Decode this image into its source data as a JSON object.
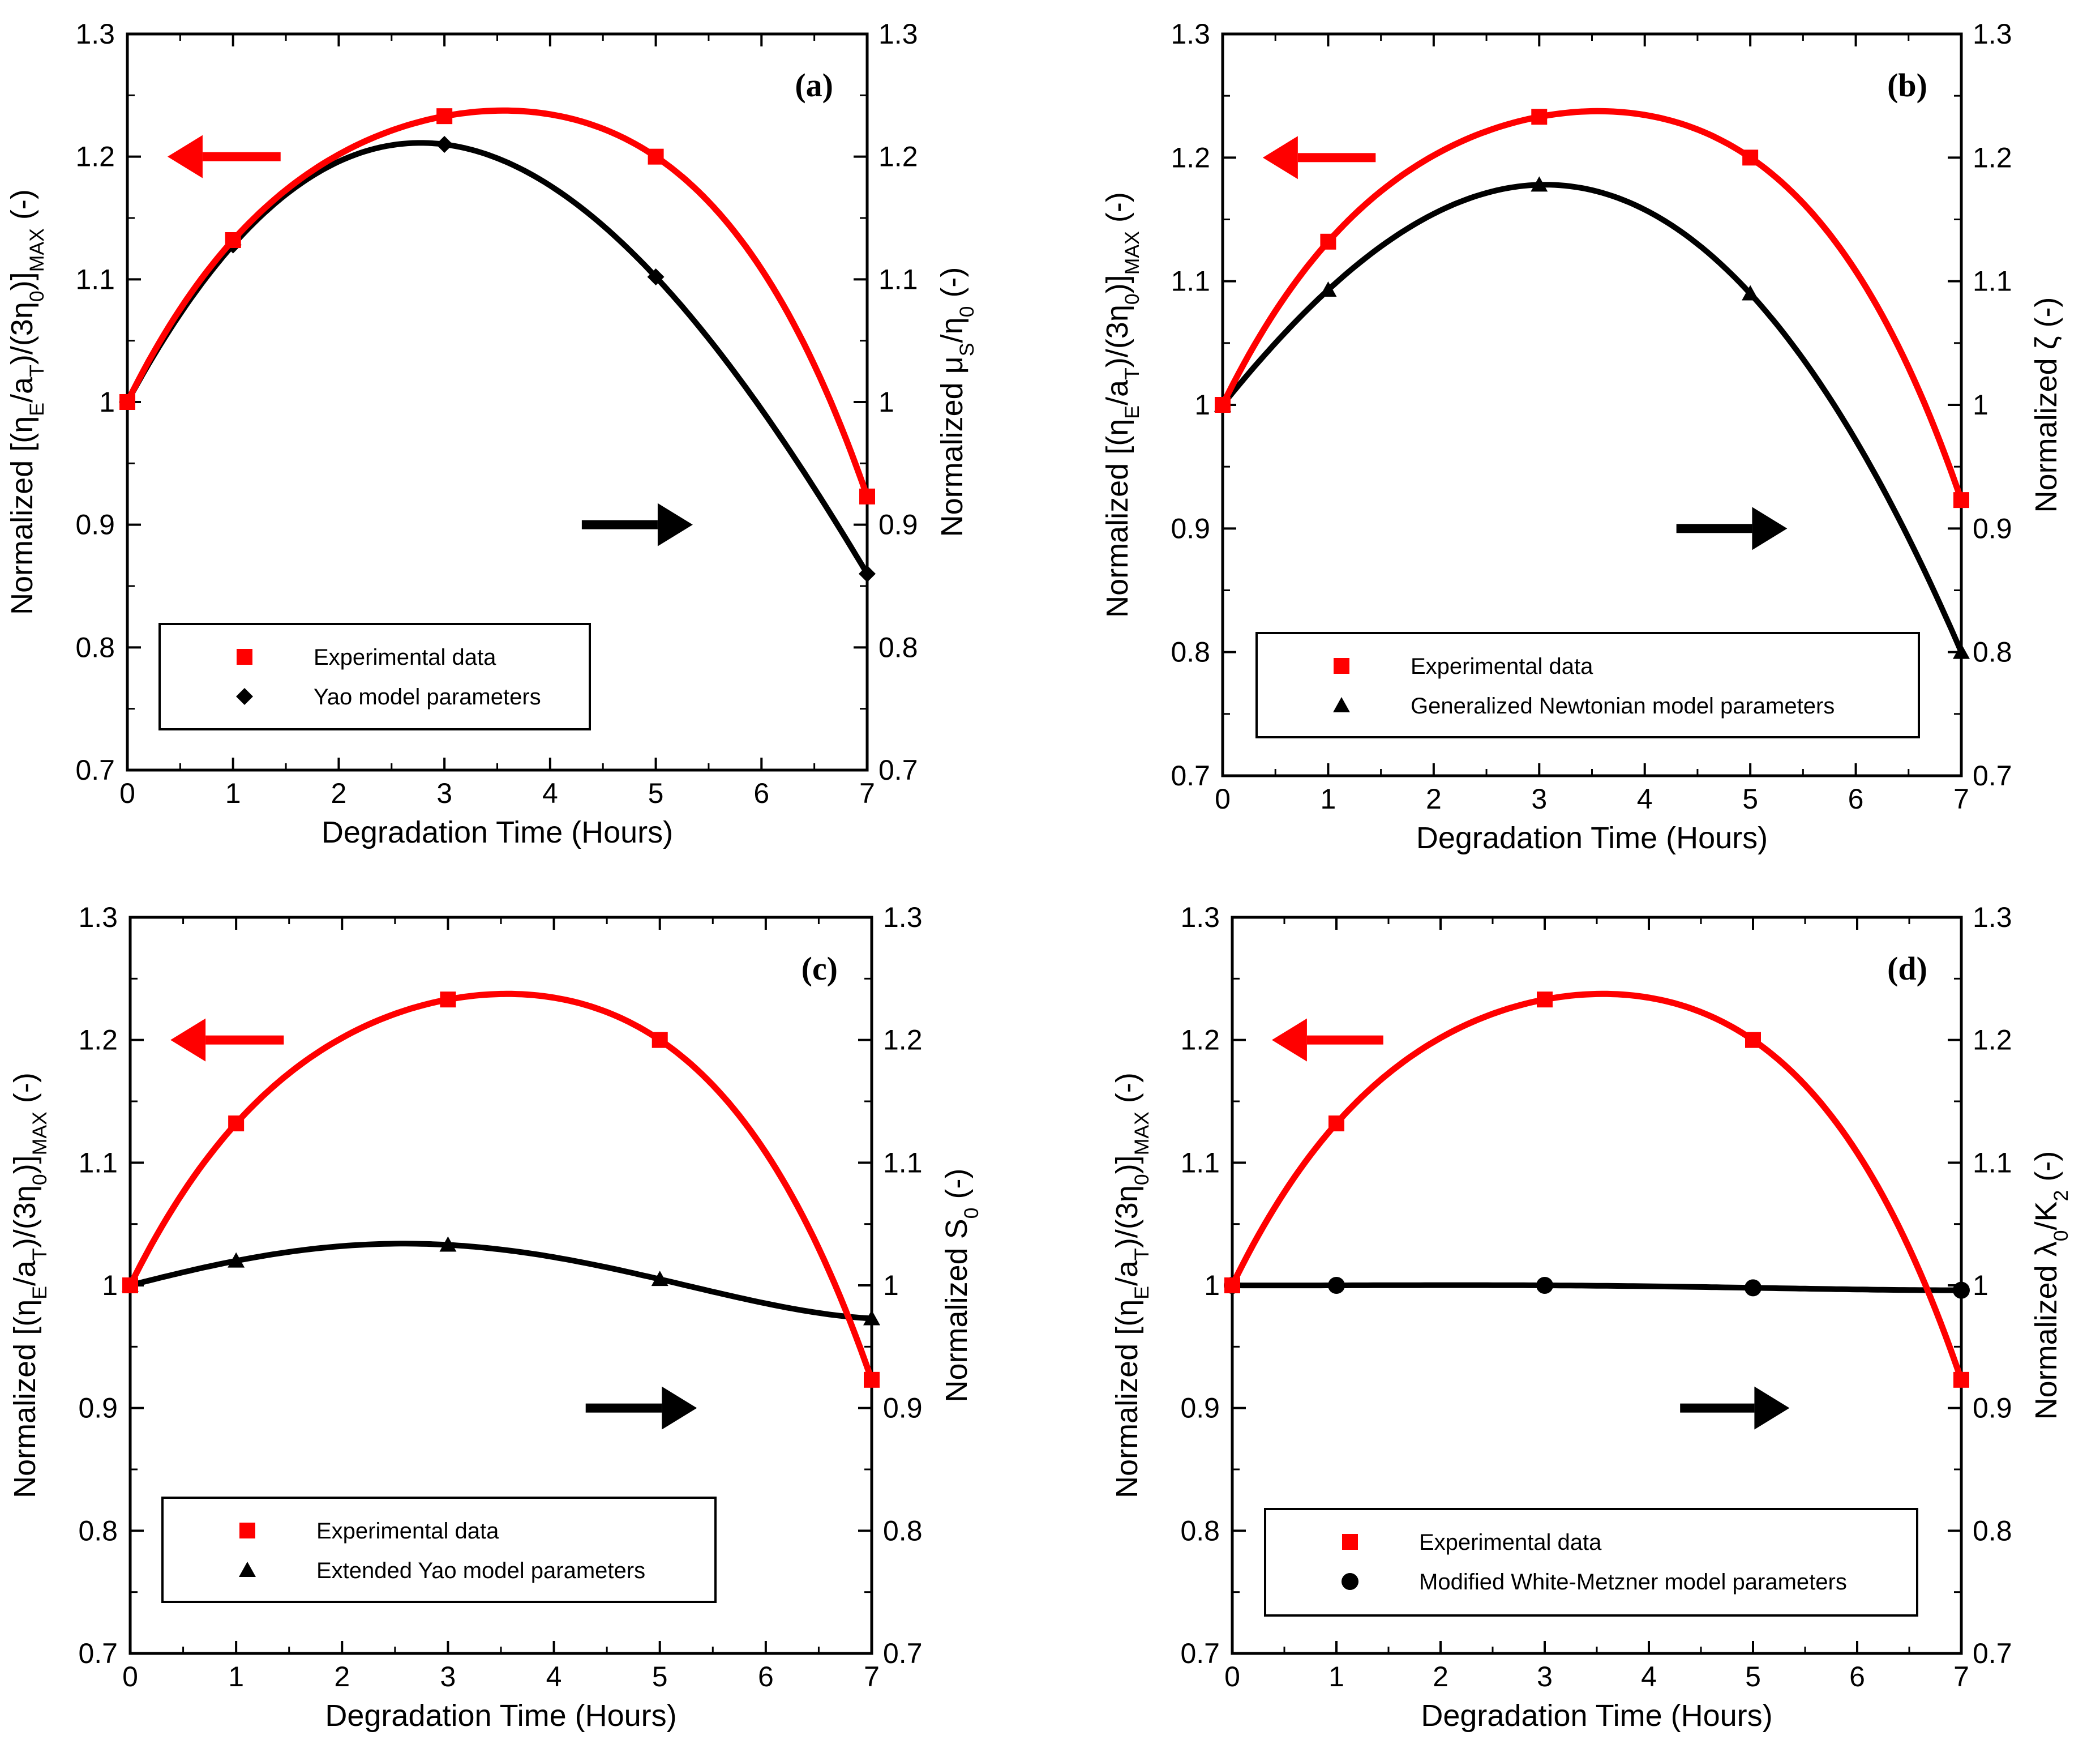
{
  "colors": {
    "experimental": "#ff0000",
    "model": "#000000",
    "axis": "#000000",
    "background": "#ffffff"
  },
  "chart_data": [
    {
      "type": "line",
      "panel_label": "(a)",
      "xlabel": "Degradation Time (Hours)",
      "ylabel_left": "Normalized [(η_E/a_T)/(3η_0)]_MAX (-)",
      "ylabel_right": "Normalized μ_S/η_0 (-)",
      "x_ticks": [
        "0",
        "1",
        "2",
        "3",
        "4",
        "5",
        "6",
        "7"
      ],
      "y_ticks": [
        "0.7",
        "0.8",
        "0.9",
        "1",
        "1.1",
        "1.2",
        "1.3"
      ],
      "xlim": [
        0,
        7
      ],
      "ylim": [
        0.7,
        1.3
      ],
      "legend_position": "bottom-left",
      "series": [
        {
          "name": "Experimental data",
          "marker": "square",
          "color": "#ff0000",
          "axis": "left",
          "x": [
            0,
            1,
            3,
            5,
            7
          ],
          "y": [
            1.0,
            1.132,
            1.233,
            1.2,
            0.923
          ]
        },
        {
          "name": "Yao model parameters",
          "marker": "diamond",
          "color": "#000000",
          "axis": "right",
          "x": [
            0,
            1,
            3,
            5,
            7
          ],
          "y": [
            1.0,
            1.128,
            1.21,
            1.102,
            0.86
          ]
        }
      ]
    },
    {
      "type": "line",
      "panel_label": "(b)",
      "xlabel": "Degradation Time (Hours)",
      "ylabel_left": "Normalized [(η_E/a_T)/(3η_0)]_MAX (-)",
      "ylabel_right": "Normalized ζ (-)",
      "x_ticks": [
        "0",
        "1",
        "2",
        "3",
        "4",
        "5",
        "6",
        "7"
      ],
      "y_ticks": [
        "0.7",
        "0.8",
        "0.9",
        "1",
        "1.1",
        "1.2",
        "1.3"
      ],
      "xlim": [
        0,
        7
      ],
      "ylim": [
        0.7,
        1.3
      ],
      "legend_position": "bottom-left",
      "series": [
        {
          "name": "Experimental data",
          "marker": "square",
          "color": "#ff0000",
          "axis": "left",
          "x": [
            0,
            1,
            3,
            5,
            7
          ],
          "y": [
            1.0,
            1.132,
            1.233,
            1.2,
            0.923
          ]
        },
        {
          "name": "Generalized Newtonian model parameters",
          "marker": "triangle",
          "color": "#000000",
          "axis": "right",
          "x": [
            0,
            1,
            3,
            5,
            7
          ],
          "y": [
            1.0,
            1.093,
            1.178,
            1.09,
            0.8
          ]
        }
      ]
    },
    {
      "type": "line",
      "panel_label": "(c)",
      "xlabel": "Degradation Time (Hours)",
      "ylabel_left": "Normalized [(η_E/a_T)/(3η_0)]_MAX (-)",
      "ylabel_right": "Normalized S_0 (-)",
      "x_ticks": [
        "0",
        "1",
        "2",
        "3",
        "4",
        "5",
        "6",
        "7"
      ],
      "y_ticks": [
        "0.7",
        "0.8",
        "0.9",
        "1",
        "1.1",
        "1.2",
        "1.3"
      ],
      "xlim": [
        0,
        7
      ],
      "ylim": [
        0.7,
        1.3
      ],
      "legend_position": "bottom-left",
      "series": [
        {
          "name": "Experimental data",
          "marker": "square",
          "color": "#ff0000",
          "axis": "left",
          "x": [
            0,
            1,
            3,
            5,
            7
          ],
          "y": [
            1.0,
            1.132,
            1.233,
            1.2,
            0.923
          ]
        },
        {
          "name": "Extended Yao model parameters",
          "marker": "triangle",
          "color": "#000000",
          "axis": "right",
          "x": [
            0,
            1,
            3,
            5,
            7
          ],
          "y": [
            1.0,
            1.02,
            1.033,
            1.005,
            0.973
          ]
        }
      ]
    },
    {
      "type": "line",
      "panel_label": "(d)",
      "xlabel": "Degradation Time (Hours)",
      "ylabel_left": "Normalized [(η_E/a_T)/(3η_0)]_MAX (-)",
      "ylabel_right": "Normalized λ_0/K_2 (-)",
      "x_ticks": [
        "0",
        "1",
        "2",
        "3",
        "4",
        "5",
        "6",
        "7"
      ],
      "y_ticks": [
        "0.7",
        "0.8",
        "0.9",
        "1",
        "1.1",
        "1.2",
        "1.3"
      ],
      "xlim": [
        0,
        7
      ],
      "ylim": [
        0.7,
        1.3
      ],
      "legend_position": "bottom-left",
      "series": [
        {
          "name": "Experimental data",
          "marker": "square",
          "color": "#ff0000",
          "axis": "left",
          "x": [
            0,
            1,
            3,
            5,
            7
          ],
          "y": [
            1.0,
            1.132,
            1.233,
            1.2,
            0.923
          ]
        },
        {
          "name": "Modified White-Metzner model parameters",
          "marker": "circle",
          "color": "#000000",
          "axis": "right",
          "x": [
            0,
            1,
            3,
            5,
            7
          ],
          "y": [
            1.0,
            1.0,
            1.0,
            0.998,
            0.996
          ]
        }
      ]
    }
  ]
}
